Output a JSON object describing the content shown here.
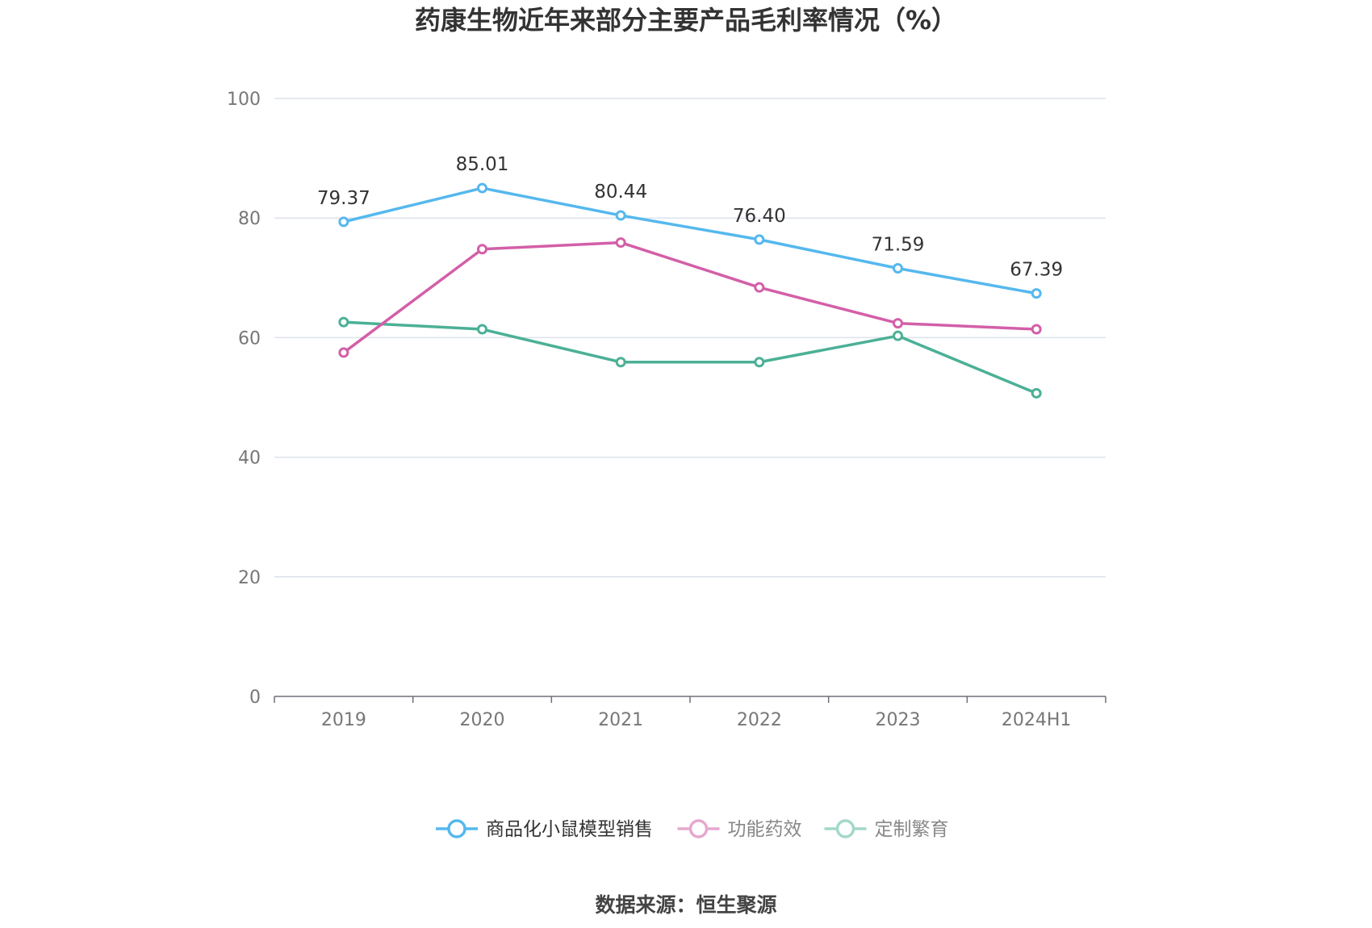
{
  "chart_data": {
    "type": "line",
    "title": "药康生物近年来部分主要产品毛利率情况（%）",
    "categories": [
      "2019",
      "2020",
      "2021",
      "2022",
      "2023",
      "2024H1"
    ],
    "ylim": [
      0,
      100
    ],
    "yticks": [
      "0",
      "20",
      "40",
      "60",
      "80",
      "100"
    ],
    "grid": true,
    "legend_position": "bottom",
    "series": [
      {
        "name": "商品化小鼠模型销售",
        "color": "#55b8ee",
        "values": [
          79.37,
          85.01,
          80.44,
          76.4,
          71.59,
          67.39
        ],
        "labels": [
          "79.37",
          "85.01",
          "80.44",
          "76.40",
          "71.59",
          "67.39"
        ],
        "show_labels": true
      },
      {
        "name": "功能药效",
        "color": "#d35fa8",
        "values": [
          57.5,
          74.8,
          75.9,
          68.4,
          62.4,
          61.4
        ],
        "show_labels": false
      },
      {
        "name": "定制繁育",
        "color": "#4bb096",
        "values": [
          62.6,
          61.4,
          55.9,
          55.9,
          60.3,
          50.7
        ],
        "show_labels": false
      }
    ]
  },
  "legend": {
    "items": [
      {
        "label": "商品化小鼠模型销售",
        "color": "#55b8ee",
        "text_color": "#333333"
      },
      {
        "label": "功能药效",
        "color": "#e5a8cf",
        "text_color": "#888888"
      },
      {
        "label": "定制繁育",
        "color": "#a3d8ca",
        "text_color": "#888888"
      }
    ]
  },
  "source": "数据来源：恒生聚源"
}
